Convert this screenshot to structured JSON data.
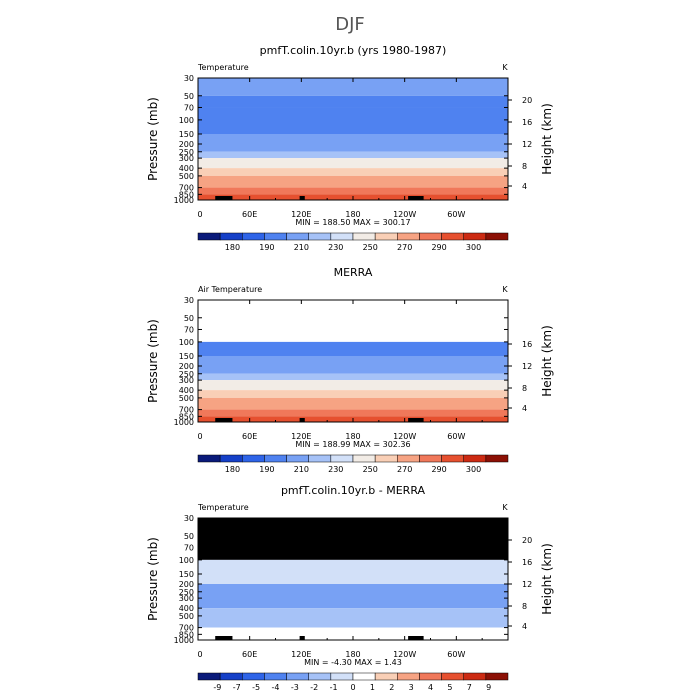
{
  "title": "DJF",
  "palette": {
    "temperature": [
      "#0a1a7a",
      "#1540c8",
      "#2e64e8",
      "#4f82f0",
      "#78a1f4",
      "#a6c2f7",
      "#d2e0f8",
      "#f2ece6",
      "#f9cfb6",
      "#f6a383",
      "#f0785a",
      "#e6502f",
      "#cc2a12",
      "#8c1005"
    ],
    "difference": [
      "#0a1a7a",
      "#1540c8",
      "#2e64e8",
      "#4f82f0",
      "#78a1f4",
      "#a6c2f7",
      "#d2e0f8",
      "#ffffff",
      "#f9cfb6",
      "#f6a383",
      "#f0785a",
      "#e6502f",
      "#cc2a12",
      "#8c1005"
    ],
    "missing": "#000000"
  },
  "axes": {
    "x_ticks": [
      "0",
      "60E",
      "120E",
      "180",
      "120W",
      "60W"
    ],
    "y_ticks": [
      "30",
      "50",
      "70",
      "100",
      "150",
      "200",
      "250",
      "300",
      "400",
      "500",
      "700",
      "850",
      "1000"
    ],
    "y_label": "Pressure (mb)",
    "right_label": "Height (km)",
    "unit": "K"
  },
  "panels": [
    {
      "title": "pmfT.colin.10yr.b (yrs 1980-1987)",
      "variable": "Temperature",
      "height_ticks": [
        "20",
        "16",
        "12",
        "8",
        "4"
      ],
      "stats": "MIN =  188.50   MAX =  300.17",
      "colorbar_labels": [
        "180",
        "190",
        "210",
        "230",
        "250",
        "270",
        "290",
        "300"
      ]
    },
    {
      "title": "MERRA",
      "variable": "Air Temperature",
      "height_ticks": [
        "16",
        "12",
        "8",
        "4"
      ],
      "stats": "MIN =  188.99   MAX =  302.36",
      "colorbar_labels": [
        "180",
        "190",
        "210",
        "230",
        "250",
        "270",
        "290",
        "300"
      ]
    },
    {
      "title": "pmfT.colin.10yr.b - MERRA",
      "variable": "Temperature",
      "height_ticks": [
        "20",
        "16",
        "12",
        "8",
        "4"
      ],
      "stats": "MIN =   -4.30   MAX =    1.43",
      "colorbar_labels": [
        "-9",
        "-7",
        "-5",
        "-4",
        "-3",
        "-2",
        "-1",
        "0",
        "1",
        "2",
        "3",
        "4",
        "5",
        "7",
        "9"
      ]
    }
  ],
  "chart_data": [
    {
      "type": "heatmap",
      "title": "pmfT.colin.10yr.b (yrs 1980-1987)",
      "ylabel": "Pressure (mb)",
      "xlim": [
        0,
        360
      ],
      "ylim": [
        1000,
        30
      ],
      "color_levels": [
        180,
        190,
        200,
        210,
        220,
        230,
        240,
        250,
        260,
        270,
        280,
        290,
        300
      ],
      "zonal_bands": [
        {
          "p": [
            30,
            50
          ],
          "value": 215
        },
        {
          "p": [
            50,
            70
          ],
          "value": 207
        },
        {
          "p": [
            70,
            150
          ],
          "value": 200
        },
        {
          "p": [
            150,
            200
          ],
          "value": 210
        },
        {
          "p": [
            200,
            250
          ],
          "value": 218
        },
        {
          "p": [
            250,
            300
          ],
          "value": 228
        },
        {
          "p": [
            300,
            400
          ],
          "value": 240
        },
        {
          "p": [
            400,
            500
          ],
          "value": 252
        },
        {
          "p": [
            500,
            700
          ],
          "value": 262
        },
        {
          "p": [
            700,
            850
          ],
          "value": 276
        },
        {
          "p": [
            850,
            1000
          ],
          "value": 288
        }
      ],
      "min": 188.5,
      "max": 300.17
    },
    {
      "type": "heatmap",
      "title": "MERRA",
      "ylabel": "Pressure (mb)",
      "xlim": [
        0,
        360
      ],
      "ylim": [
        1000,
        30
      ],
      "color_levels": [
        180,
        190,
        200,
        210,
        220,
        230,
        240,
        250,
        260,
        270,
        280,
        290,
        300
      ],
      "zonal_bands": [
        {
          "p": [
            100,
            150
          ],
          "value": 200
        },
        {
          "p": [
            150,
            200
          ],
          "value": 210
        },
        {
          "p": [
            200,
            250
          ],
          "value": 218
        },
        {
          "p": [
            250,
            300
          ],
          "value": 228
        },
        {
          "p": [
            300,
            400
          ],
          "value": 240
        },
        {
          "p": [
            400,
            500
          ],
          "value": 252
        },
        {
          "p": [
            500,
            700
          ],
          "value": 262
        },
        {
          "p": [
            700,
            850
          ],
          "value": 276
        },
        {
          "p": [
            850,
            1000
          ],
          "value": 288
        }
      ],
      "min": 188.99,
      "max": 302.36
    },
    {
      "type": "heatmap",
      "title": "pmfT.colin.10yr.b - MERRA",
      "ylabel": "Pressure (mb)",
      "xlim": [
        0,
        360
      ],
      "ylim": [
        1000,
        30
      ],
      "color_levels": [
        -9,
        -7,
        -5,
        -4,
        -3,
        -2,
        -1,
        0,
        1,
        2,
        3,
        4,
        5,
        7,
        9
      ],
      "zonal_bands": [
        {
          "p": [
            30,
            100
          ],
          "value": null
        },
        {
          "p": [
            100,
            200
          ],
          "value": -1.5
        },
        {
          "p": [
            200,
            400
          ],
          "value": -3.5
        },
        {
          "p": [
            400,
            700
          ],
          "value": -2.5
        },
        {
          "p": [
            700,
            1000
          ],
          "value": -0.5
        }
      ],
      "min": -4.3,
      "max": 1.43
    }
  ]
}
